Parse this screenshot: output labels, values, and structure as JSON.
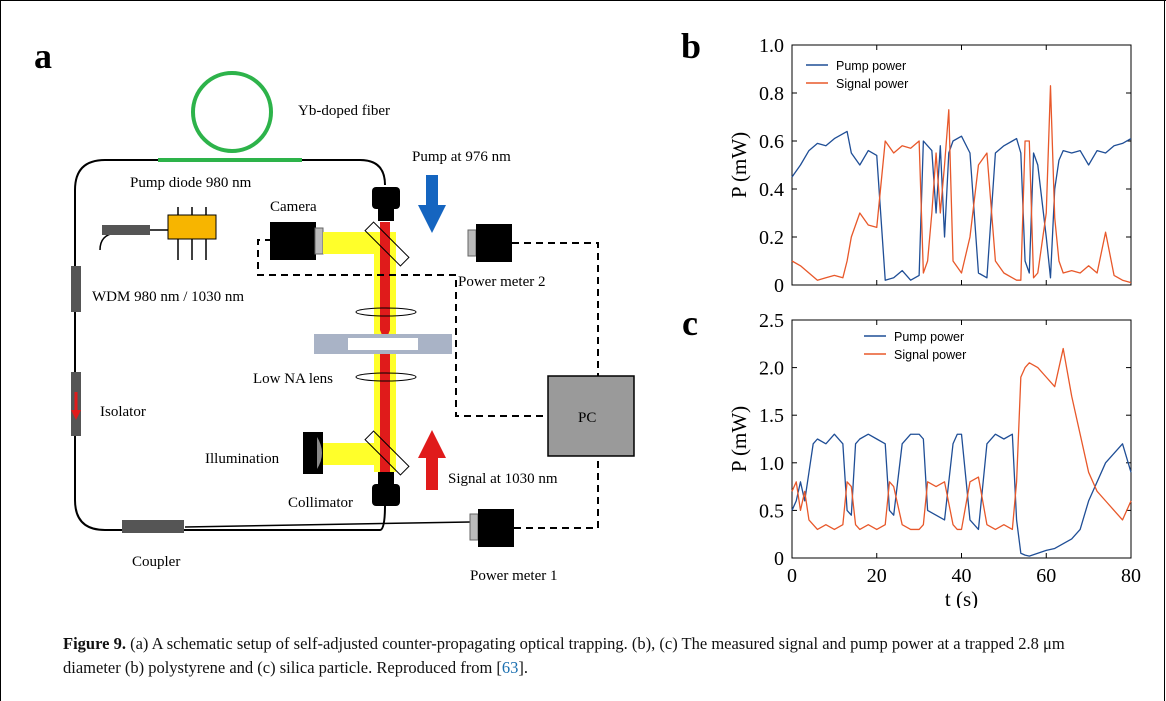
{
  "panel_a": {
    "label": "a",
    "yb_fiber": "Yb-doped fiber",
    "pump_diode": "Pump diode 980 nm",
    "camera": "Camera",
    "pump_at": "Pump at 976 nm",
    "power_meter_2": "Power meter 2",
    "wdm": "WDM 980 nm / 1030 nm",
    "low_na_lens": "Low NA lens",
    "isolator": "Isolator",
    "pc": "PC",
    "illumination": "Illumination",
    "signal_at": "Signal at 1030 nm",
    "collimator": "Collimator",
    "coupler": "Coupler",
    "power_meter_1": "Power meter 1"
  },
  "panel_b": {
    "label": "b"
  },
  "panel_c": {
    "label": "c"
  },
  "chart_data": [
    {
      "type": "line",
      "panel": "b",
      "ylabel": "P (mW)",
      "xlabel": "",
      "xlim": [
        0,
        80
      ],
      "ylim": [
        0,
        1.0
      ],
      "yticks": [
        "0",
        "0.2",
        "0.4",
        "0.6",
        "0.8",
        "1.0"
      ],
      "legend_position": "top-left",
      "series": [
        {
          "name": "Pump power",
          "color": "#1f4e96",
          "x": [
            0,
            2,
            4,
            6,
            8,
            10,
            12,
            13,
            14,
            16,
            18,
            20,
            22,
            24,
            26,
            28,
            30,
            31,
            32,
            33,
            34,
            35,
            36,
            37,
            38,
            40,
            42,
            44,
            46,
            48,
            50,
            52,
            53,
            54,
            55,
            56,
            57,
            58,
            60,
            61,
            62,
            63,
            64,
            66,
            68,
            70,
            72,
            74,
            76,
            78,
            80
          ],
          "y": [
            0.45,
            0.5,
            0.56,
            0.59,
            0.58,
            0.61,
            0.63,
            0.64,
            0.55,
            0.5,
            0.56,
            0.54,
            0.02,
            0.03,
            0.06,
            0.02,
            0.04,
            0.6,
            0.58,
            0.56,
            0.3,
            0.58,
            0.2,
            0.55,
            0.6,
            0.62,
            0.55,
            0.05,
            0.03,
            0.55,
            0.58,
            0.6,
            0.61,
            0.55,
            0.1,
            0.05,
            0.55,
            0.5,
            0.2,
            0.03,
            0.4,
            0.52,
            0.56,
            0.55,
            0.56,
            0.5,
            0.56,
            0.55,
            0.58,
            0.59,
            0.61
          ]
        },
        {
          "name": "Signal power",
          "color": "#e8582a",
          "x": [
            0,
            2,
            4,
            6,
            8,
            10,
            12,
            13,
            14,
            16,
            18,
            20,
            22,
            24,
            26,
            28,
            30,
            31,
            32,
            33,
            34,
            35,
            36,
            37,
            38,
            40,
            42,
            44,
            46,
            48,
            50,
            52,
            53,
            54,
            55,
            56,
            57,
            58,
            60,
            61,
            62,
            63,
            64,
            66,
            68,
            70,
            72,
            74,
            76,
            78,
            80
          ],
          "y": [
            0.1,
            0.08,
            0.05,
            0.02,
            0.03,
            0.04,
            0.03,
            0.1,
            0.2,
            0.3,
            0.25,
            0.24,
            0.6,
            0.55,
            0.58,
            0.57,
            0.6,
            0.05,
            0.1,
            0.3,
            0.55,
            0.3,
            0.5,
            0.73,
            0.1,
            0.05,
            0.2,
            0.5,
            0.55,
            0.1,
            0.05,
            0.03,
            0.02,
            0.02,
            0.6,
            0.6,
            0.03,
            0.05,
            0.3,
            0.83,
            0.28,
            0.1,
            0.05,
            0.06,
            0.05,
            0.08,
            0.05,
            0.22,
            0.04,
            0.02,
            0.01
          ]
        }
      ]
    },
    {
      "type": "line",
      "panel": "c",
      "ylabel": "P (mW)",
      "xlabel": "t (s)",
      "xlim": [
        0,
        80
      ],
      "ylim": [
        0,
        2.5
      ],
      "xticks": [
        "0",
        "20",
        "40",
        "60",
        "80"
      ],
      "yticks": [
        "0",
        "0.5",
        "1.0",
        "1.5",
        "2.0",
        "2.5"
      ],
      "legend_position": "top-center",
      "series": [
        {
          "name": "Pump power",
          "color": "#1f4e96",
          "x": [
            0,
            1,
            2,
            3,
            4,
            5,
            6,
            8,
            10,
            12,
            13,
            14,
            15,
            16,
            18,
            20,
            22,
            23,
            24,
            26,
            28,
            30,
            31,
            32,
            34,
            36,
            38,
            39,
            40,
            42,
            44,
            46,
            48,
            50,
            52,
            53,
            54,
            55,
            56,
            58,
            60,
            62,
            64,
            66,
            68,
            70,
            72,
            74,
            76,
            78,
            80
          ],
          "y": [
            0.5,
            0.6,
            0.8,
            0.6,
            0.9,
            1.2,
            1.25,
            1.2,
            1.3,
            1.2,
            0.5,
            0.45,
            1.2,
            1.25,
            1.3,
            1.25,
            1.2,
            0.5,
            0.45,
            1.2,
            1.3,
            1.3,
            1.25,
            0.5,
            0.45,
            0.4,
            1.2,
            1.3,
            1.3,
            0.4,
            0.3,
            1.2,
            1.3,
            1.25,
            1.3,
            0.4,
            0.05,
            0.03,
            0.02,
            0.05,
            0.08,
            0.1,
            0.15,
            0.2,
            0.3,
            0.6,
            0.8,
            1.0,
            1.1,
            1.2,
            0.9
          ]
        },
        {
          "name": "Signal power",
          "color": "#e8582a",
          "x": [
            0,
            1,
            2,
            3,
            4,
            5,
            6,
            8,
            10,
            12,
            13,
            14,
            15,
            16,
            18,
            20,
            22,
            23,
            24,
            26,
            28,
            30,
            31,
            32,
            34,
            36,
            38,
            39,
            40,
            42,
            44,
            46,
            48,
            50,
            52,
            53,
            54,
            55,
            56,
            58,
            60,
            62,
            64,
            66,
            68,
            70,
            72,
            74,
            76,
            78,
            80
          ],
          "y": [
            0.7,
            0.8,
            0.5,
            0.7,
            0.4,
            0.35,
            0.3,
            0.35,
            0.3,
            0.35,
            0.8,
            0.75,
            0.35,
            0.3,
            0.35,
            0.3,
            0.35,
            0.8,
            0.75,
            0.35,
            0.3,
            0.3,
            0.35,
            0.8,
            0.75,
            0.8,
            0.35,
            0.3,
            0.3,
            0.8,
            0.85,
            0.35,
            0.3,
            0.35,
            0.3,
            0.8,
            1.9,
            2.0,
            2.05,
            2.0,
            1.9,
            1.8,
            2.2,
            1.7,
            1.3,
            0.9,
            0.7,
            0.6,
            0.5,
            0.4,
            0.6
          ]
        }
      ]
    }
  ],
  "caption": {
    "label": "Figure 9.",
    "text": " (a) A schematic setup of self-adjusted counter-propagating optical trapping. (b), (c) The measured signal and pump power at a trapped 2.8 μm diameter (b) polystyrene and (c) silica particle. Reproduced from [",
    "ref": "63",
    "end": "]."
  }
}
